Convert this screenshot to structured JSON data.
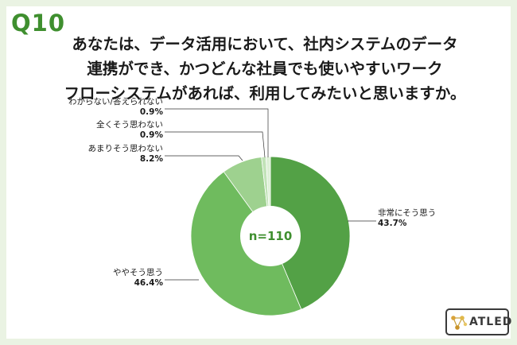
{
  "question_number": "Q10",
  "question_lines": [
    "あなたは、データ活用において、社内システムのデータ",
    "連携ができ、かつどんな社員でも使いやすいワーク",
    "フローシステムがあれば、利用してみたいと思いますか。"
  ],
  "logo_text": "ATLED",
  "colors": {
    "background": "#eaf3e3",
    "accent": "#3f8f2f"
  },
  "chart_data": {
    "type": "pie",
    "title": "",
    "center_label": "n=110",
    "slices": [
      {
        "label": "非常にそう思う",
        "value": 43.7,
        "value_label": "43.7%",
        "color": "#53a146"
      },
      {
        "label": "ややそう思う",
        "value": 46.4,
        "value_label": "46.4%",
        "color": "#6fbb5e"
      },
      {
        "label": "あまりそう思わない",
        "value": 8.2,
        "value_label": "8.2%",
        "color": "#9ed18f"
      },
      {
        "label": "全くそう思わない",
        "value": 0.9,
        "value_label": "0.9%",
        "color": "#c2e3b8"
      },
      {
        "label": "わからない/答えられない",
        "value": 0.9,
        "value_label": "0.9%",
        "color": "#ddf0d6"
      }
    ]
  }
}
